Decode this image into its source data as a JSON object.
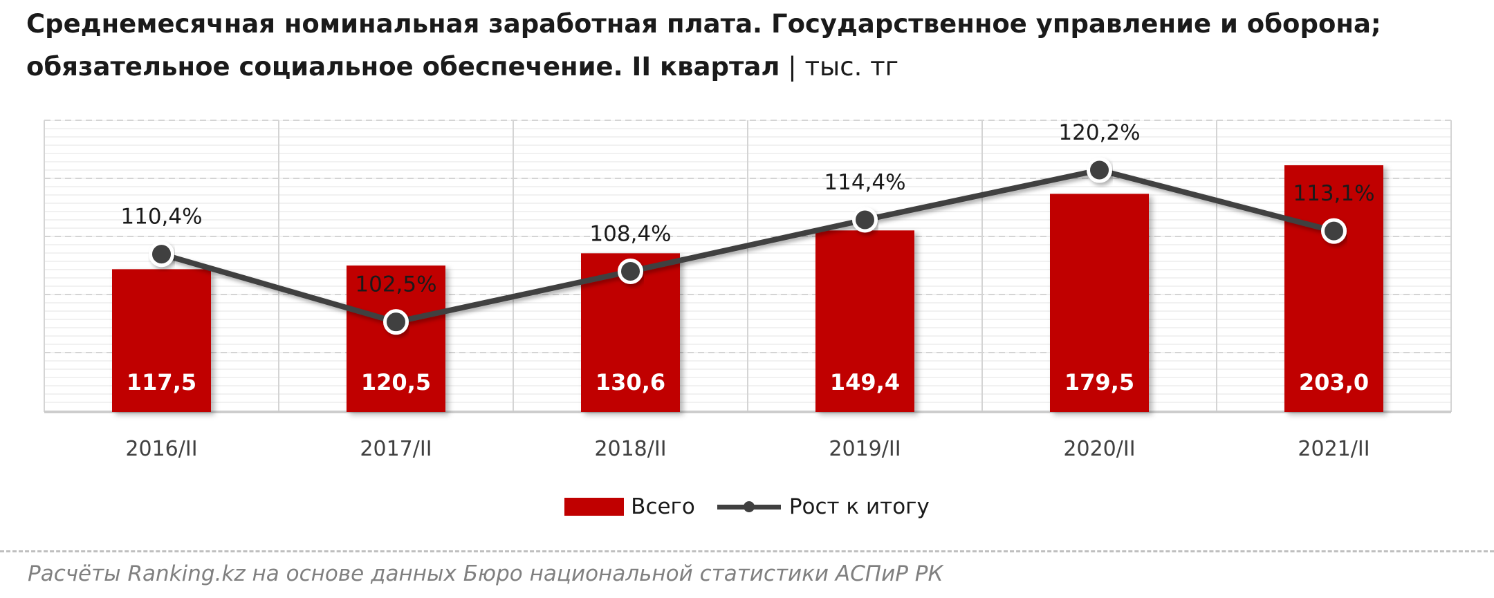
{
  "title": {
    "main": "Среднемесячная номинальная заработная плата. Государственное управление и оборона; обязательное  социальное обеспечение. II квартал",
    "separator": " | ",
    "unit": "тыс. тг"
  },
  "chart_data": {
    "type": "bar",
    "categories": [
      "2016/II",
      "2017/II",
      "2018/II",
      "2019/II",
      "2020/II",
      "2021/II"
    ],
    "series": [
      {
        "name": "Всего",
        "type": "bar",
        "values": [
          117.5,
          120.5,
          130.6,
          149.4,
          179.5,
          203.0
        ],
        "labels": [
          "117,5",
          "120,5",
          "130,6",
          "149,4",
          "179,5",
          "203,0"
        ],
        "color": "#c00000"
      },
      {
        "name": "Рост к итогу",
        "type": "line",
        "values": [
          110.4,
          102.5,
          108.4,
          114.4,
          120.2,
          113.1
        ],
        "labels": [
          "110,4%",
          "102,5%",
          "108,4%",
          "114,4%",
          "120,2%",
          "113,1%"
        ],
        "color": "#404040"
      }
    ],
    "bar_axis_range": [
      0,
      240
    ],
    "line_axis_range": [
      92,
      126
    ],
    "grid": true,
    "legend_position": "bottom"
  },
  "legend": {
    "bar_label": "Всего",
    "line_label": "Рост к итогу"
  },
  "source": "Расчёты Ranking.kz на основе данных Бюро национальной статистики АСПиР РК"
}
